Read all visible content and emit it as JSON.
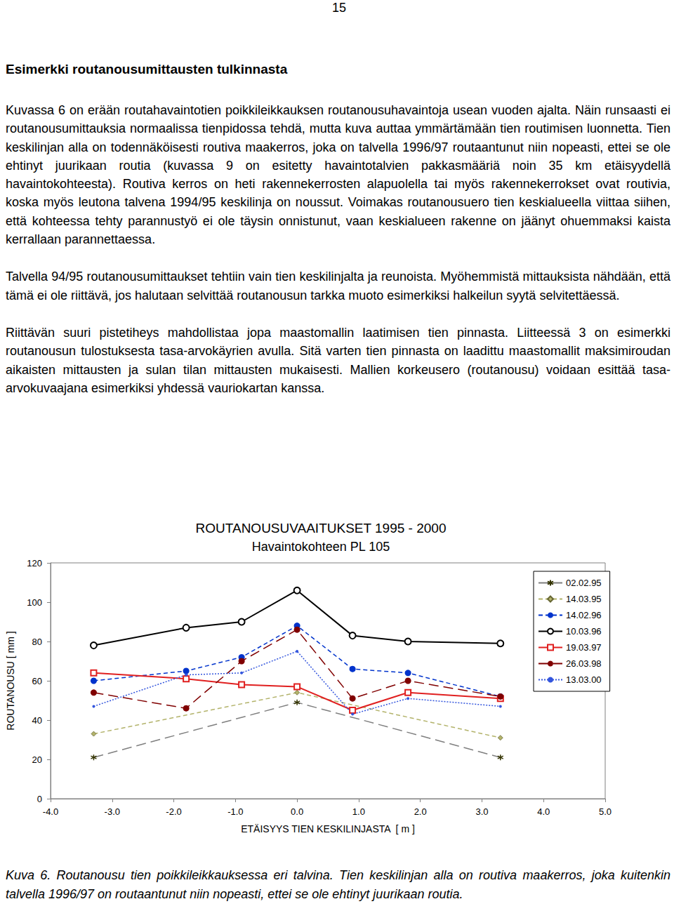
{
  "page_number": "15",
  "heading": "Esimerkki routanousumittausten tulkinnasta",
  "paragraphs": [
    "Kuvassa 6 on erään routahavaintotien poikkileikkauksen routanousuhavaintoja usean vuoden ajalta. Näin runsaasti ei routanousumittauksia normaalissa tienpidossa tehdä, mutta kuva auttaa ymmärtämään tien routimisen luonnetta. Tien keskilinjan alla on todennäköisesti routiva maakerros, joka on talvella 1996/97 routaantunut niin nopeasti, ettei se ole ehtinyt juurikaan routia (kuvassa 9 on esitetty havaintotalvien pakkasmääriä noin 35 km etäisyydellä havaintokohteesta). Routiva kerros on heti rakennekerrosten alapuolella tai myös rakennekerrokset ovat routivia, koska myös leutona talvena 1994/95 keskilinja on noussut. Voimakas routanousuero tien keskialueella viittaa siihen, että kohteessa tehty parannustyö ei ole täysin onnistunut, vaan keskialueen rakenne on jäänyt ohuemmaksi kaista kerrallaan parannettaessa.",
    "Talvella 94/95 routanousumittaukset tehtiin vain tien keskilinjalta ja reunoista. Myöhemmistä mittauksista nähdään, että tämä ei ole riittävä, jos halutaan selvittää routanousun tarkka muoto esimerkiksi halkeilun syytä selvitettäessä.",
    "Riittävän suuri pistetiheys mahdollistaa jopa maastomallin laatimisen tien pinnasta. Liitteessä 3 on esimerkki routanousun tulostuksesta tasa-arvokäyrien avulla. Sitä varten tien pinnasta on laadittu maastomallit maksimiroudan aikaisten mittausten ja sulan tilan mittausten mukaisesti. Mallien korkeusero (routanousu) voidaan esittää tasa-arvokuvaajana esimerkiksi yhdessä vauriokartan kanssa."
  ],
  "chart_data": {
    "type": "line",
    "title": "ROUTANOUSUVAAITUKSET 1995 - 2000",
    "subtitle": "Havaintokohteen PL 105",
    "x_label": "ETÄISYYS TIEN KESKILINJASTA  [ m ]",
    "y_label": "ROUTANOUSU [ mm ]",
    "xlim": [
      -4,
      5
    ],
    "xticks": [
      {
        "value": -4,
        "label": "-4.0"
      },
      {
        "value": -3,
        "label": "-3.0"
      },
      {
        "value": -2,
        "label": "-2.0"
      },
      {
        "value": -1,
        "label": "-1.0"
      },
      {
        "value": 0,
        "label": "0.0"
      },
      {
        "value": 1,
        "label": "1.0"
      },
      {
        "value": 2,
        "label": "2.0"
      },
      {
        "value": 3,
        "label": "3.0"
      },
      {
        "value": 4,
        "label": "4.0"
      },
      {
        "value": 5,
        "label": "5.0"
      }
    ],
    "ylim": [
      0,
      120
    ],
    "yticks": [
      0,
      20,
      40,
      60,
      80,
      100,
      120
    ],
    "grid": false,
    "legend": "top right",
    "series": [
      {
        "name": "02.02.95",
        "color": "#7f7f7f",
        "marker": "star",
        "line_style": "long_dash",
        "x": [
          -3.3,
          0,
          3.3
        ],
        "values": [
          21,
          49,
          21
        ]
      },
      {
        "name": "14.03.95",
        "color": "#b3b36b",
        "marker": "diamond",
        "line_style": "dashed",
        "x": [
          -3.3,
          0,
          3.3
        ],
        "values": [
          33,
          54,
          31
        ]
      },
      {
        "name": "14.02.96",
        "color": "#0033cc",
        "marker": "circle",
        "line_style": "dashed",
        "x": [
          -3.3,
          -1.8,
          -0.9,
          0,
          0.9,
          1.8,
          3.3
        ],
        "values": [
          60,
          65,
          72,
          88,
          66,
          64,
          52
        ]
      },
      {
        "name": "10.03.96",
        "color": "#000000",
        "marker": "open_circle",
        "line_style": "solid",
        "x": [
          -3.3,
          -1.8,
          -0.9,
          0,
          0.9,
          1.8,
          3.3
        ],
        "values": [
          78,
          87,
          90,
          106,
          83,
          80,
          79
        ]
      },
      {
        "name": "19.03.97",
        "color": "#e02020",
        "marker": "open_square",
        "line_style": "solid",
        "x": [
          -3.3,
          -1.8,
          -0.9,
          0,
          0.9,
          1.8,
          3.3
        ],
        "values": [
          64,
          61,
          58,
          57,
          45,
          54,
          51
        ]
      },
      {
        "name": "26.03.98",
        "color": "#800000",
        "marker": "circle",
        "line_style": "long_dash",
        "x": [
          -3.3,
          -1.8,
          -0.9,
          0,
          0.9,
          1.8,
          3.3
        ],
        "values": [
          54,
          46,
          70,
          86,
          51,
          60,
          52
        ]
      },
      {
        "name": "13.03.00",
        "color": "#3355dd",
        "marker": "dot",
        "line_style": "dotted",
        "x": [
          -3.3,
          -1.8,
          -0.9,
          0,
          0.9,
          1.8,
          3.3
        ],
        "values": [
          47,
          63,
          64,
          75,
          43,
          51,
          47
        ]
      }
    ]
  },
  "caption": "Kuva 6. Routanousu tien poikkileikkauksessa eri talvina. Tien keskilinjan alla on routiva maakerros, joka kuitenkin talvella 1996/97 on routaantunut niin nopeasti, ettei se ole ehtinyt juurikaan routia."
}
